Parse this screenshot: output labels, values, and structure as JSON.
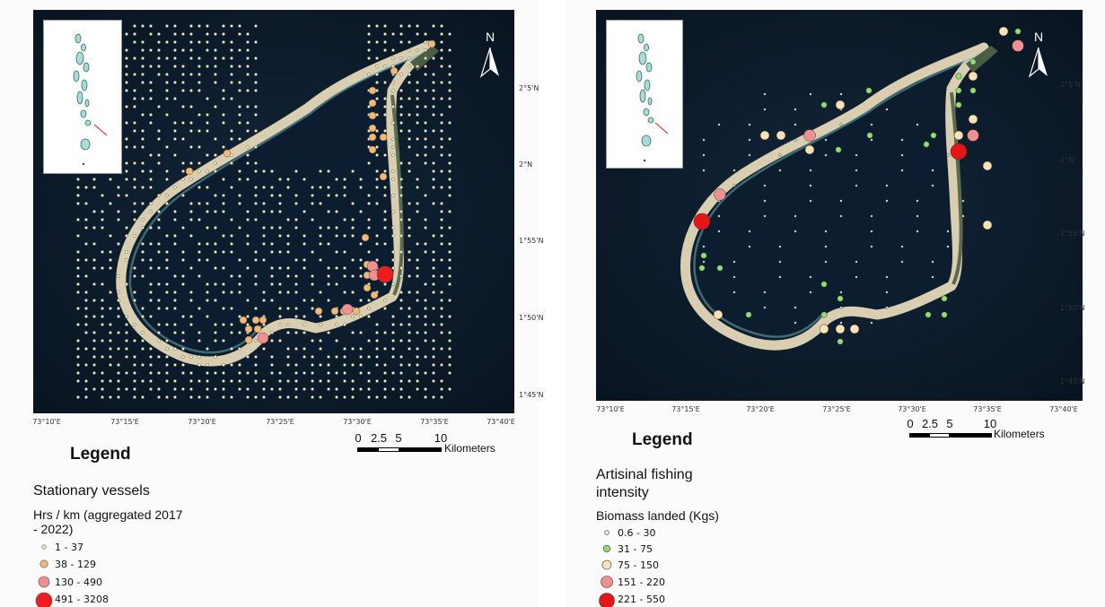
{
  "maps": [
    {
      "id": "stationary",
      "north_label": "N",
      "lat_labels": [
        "2°5'N",
        "2°N",
        "1°55'N",
        "1°50'N",
        "1°45'N"
      ],
      "lon_labels": [
        "73°10'E",
        "73°15'E",
        "73°20'E",
        "73°25'E",
        "73°30'E",
        "73°35'E",
        "73°40'E"
      ],
      "scale": {
        "ticks": [
          "0",
          "2.5",
          "5",
          "10"
        ],
        "unit": "Kilometers"
      },
      "legend": {
        "title": "Legend",
        "subtitle": "Stationary vessels",
        "field": "Hrs / km (aggregated 2017 - 2022)",
        "classes": [
          {
            "label": "1 - 37",
            "color": "#f4f1c4"
          },
          {
            "label": "38 - 129",
            "color": "#f5b871"
          },
          {
            "label": "130 - 490",
            "color": "#f08f8f"
          },
          {
            "label": "491 - 3208",
            "color": "#ee1c1c"
          }
        ]
      }
    },
    {
      "id": "artisanal",
      "north_label": "N",
      "lat_labels": [
        "2°5'N",
        "2°N",
        "1°55'N",
        "1°50'N",
        "1°45'N"
      ],
      "lon_labels": [
        "73°10'E",
        "73°15'E",
        "73°20'E",
        "73°25'E",
        "73°30'E",
        "73°35'E",
        "73°40'E"
      ],
      "scale": {
        "ticks": [
          "0",
          "2.5",
          "5",
          "10"
        ],
        "unit": "Kilometers"
      },
      "legend": {
        "title": "Legend",
        "subtitle": "Artisinal fishing intensity",
        "field": "Biomass landed (Kgs)",
        "classes": [
          {
            "label": "0.6 - 30",
            "color": "#e7f3e4"
          },
          {
            "label": "31 - 75",
            "color": "#8fe06a"
          },
          {
            "label": "75 - 150",
            "color": "#fbe2b4"
          },
          {
            "label": "151 - 220",
            "color": "#f08f8f"
          },
          {
            "label": "221 - 550",
            "color": "#e51616"
          }
        ]
      }
    }
  ]
}
